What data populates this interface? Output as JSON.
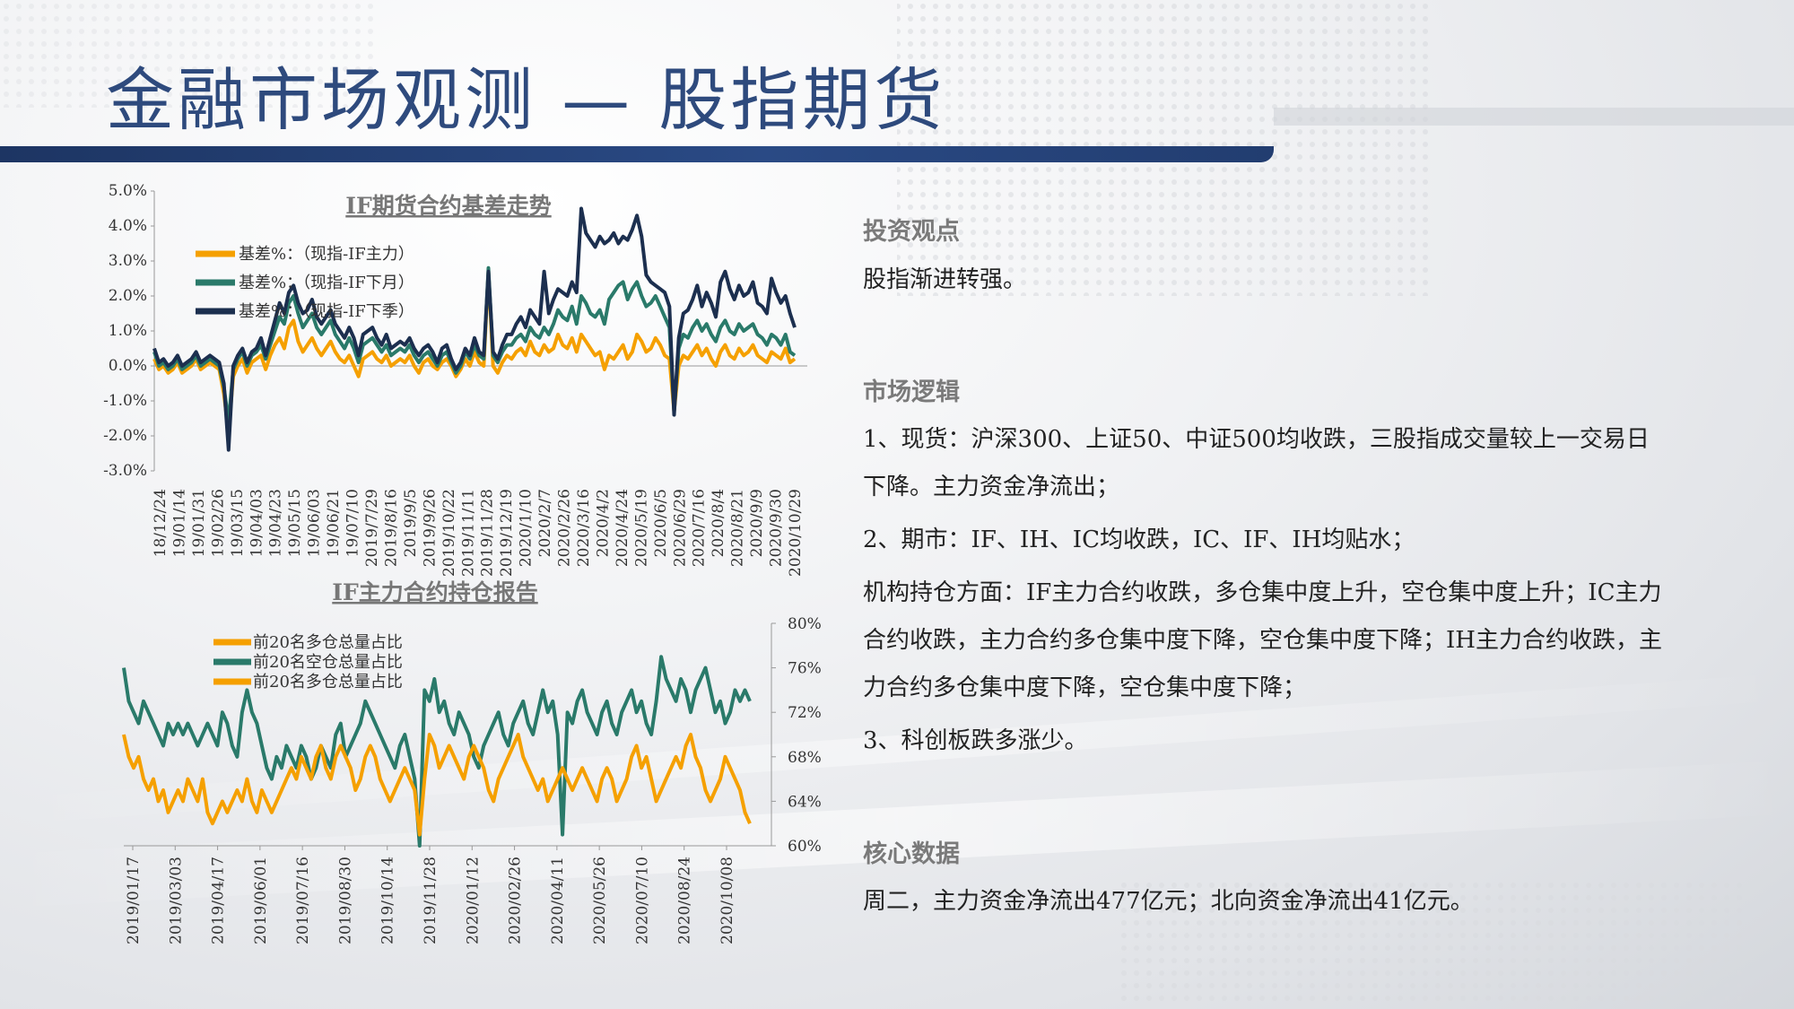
{
  "page": {
    "title": "金融市场观测 — 股指期货"
  },
  "sections": {
    "view_heading": "投资观点",
    "view_text": "股指渐进转强。",
    "logic_heading": "市场逻辑",
    "logic_lines": [
      "1、现货：沪深300、上证50、中证500均收跌，三股指成交量较上一交易日下降。主力资金净流出；",
      "2、期市：IF、IH、IC均收跌，IC、IF、IH均贴水；",
      "机构持仓方面：IF主力合约收跌，多仓集中度上升，空仓集中度上升；IC主力合约收跌，主力合约多仓集中度下降，空仓集中度下降；IH主力合约收跌，主力合约多仓集中度下降，空仓集中度下降；",
      "3、科创板跌多涨少。"
    ],
    "core_heading": "核心数据",
    "core_text": "周二，主力资金净流出477亿元；北向资金净流出41亿元。"
  },
  "colors": {
    "orange": "#f5a000",
    "green": "#2a7a6a",
    "navy": "#1c2f4f",
    "title_blue": "#2e4a7d"
  },
  "chart_data": [
    {
      "type": "line",
      "title": "IF期货合约基差走势",
      "ylim": [
        -3.0,
        5.0
      ],
      "y_ticks": [
        "5.0%",
        "4.0%",
        "3.0%",
        "2.0%",
        "1.0%",
        "0.0%",
        "-1.0%",
        "-2.0%",
        "-3.0%"
      ],
      "x_ticks": [
        "18/12/24",
        "19/01/14",
        "19/01/31",
        "19/02/26",
        "19/03/15",
        "19/04/03",
        "19/04/23",
        "19/05/15",
        "19/06/03",
        "19/06/21",
        "19/07/10",
        "2019/7/29",
        "2019/8/16",
        "2019/9/5",
        "2019/9/26",
        "2019/10/22",
        "2019/11/11",
        "2019/11/28",
        "2019/12/19",
        "2020/1/10",
        "2020/2/7",
        "2020/2/26",
        "2020/3/16",
        "2020/4/2",
        "2020/4/24",
        "2020/5/19",
        "2020/6/5",
        "2020/6/29",
        "2020/7/16",
        "2020/8/4",
        "2020/8/21",
        "2020/9/9",
        "2020/9/30",
        "2020/10/29"
      ],
      "legend": "top-left",
      "series": [
        {
          "name": "基差%：（现指-IF主力）",
          "color": "#f5a000",
          "values": [
            0.2,
            -0.1,
            0.0,
            -0.2,
            -0.1,
            0.1,
            -0.2,
            -0.1,
            0.0,
            0.2,
            -0.1,
            0.0,
            0.1,
            0.0,
            -0.1,
            -0.8,
            -1.9,
            -0.3,
            0.0,
            0.2,
            -0.2,
            0.1,
            0.2,
            0.3,
            -0.1,
            0.3,
            0.6,
            0.8,
            0.5,
            1.1,
            1.3,
            0.7,
            0.4,
            0.6,
            0.8,
            0.5,
            0.3,
            0.5,
            0.7,
            0.4,
            0.2,
            0.1,
            0.3,
            0.0,
            -0.3,
            0.2,
            0.3,
            0.4,
            0.2,
            0.1,
            0.3,
            0.0,
            0.1,
            0.2,
            0.1,
            0.3,
            0.0,
            -0.2,
            0.1,
            0.2,
            0.0,
            -0.1,
            0.1,
            0.2,
            0.0,
            -0.3,
            -0.1,
            0.2,
            0.0,
            0.4,
            0.1,
            0.0,
            2.7,
            0.0,
            -0.2,
            0.1,
            0.3,
            0.2,
            0.4,
            0.5,
            0.3,
            0.7,
            0.4,
            0.3,
            0.6,
            0.4,
            0.5,
            0.9,
            0.6,
            0.5,
            0.8,
            0.4,
            0.9,
            0.7,
            0.5,
            0.3,
            0.4,
            -0.1,
            0.3,
            0.2,
            0.4,
            0.6,
            0.2,
            0.4,
            0.9,
            0.7,
            0.4,
            0.5,
            0.8,
            0.6,
            0.3,
            0.2,
            -1.3,
            0.0,
            0.3,
            0.2,
            0.4,
            0.6,
            0.3,
            0.5,
            0.2,
            0.0,
            0.4,
            0.6,
            0.3,
            0.2,
            0.5,
            0.3,
            0.4,
            0.6,
            0.3,
            0.2,
            0.1,
            0.4,
            0.3,
            0.2,
            0.5,
            0.1,
            0.2
          ]
        },
        {
          "name": "基差%：（现指-IF下月）",
          "color": "#2a7a6a",
          "values": [
            0.4,
            0.0,
            0.1,
            -0.1,
            0.0,
            0.2,
            -0.1,
            0.0,
            0.1,
            0.3,
            0.0,
            0.1,
            0.2,
            0.1,
            0.0,
            -0.6,
            -1.6,
            -0.1,
            0.2,
            0.4,
            0.0,
            0.3,
            0.4,
            0.6,
            0.2,
            0.6,
            1.0,
            1.4,
            1.2,
            1.8,
            2.0,
            1.5,
            1.1,
            1.3,
            1.5,
            1.1,
            0.9,
            1.1,
            1.3,
            0.9,
            0.7,
            0.5,
            0.8,
            0.5,
            0.1,
            0.6,
            0.7,
            0.8,
            0.6,
            0.4,
            0.6,
            0.3,
            0.4,
            0.5,
            0.4,
            0.6,
            0.3,
            0.1,
            0.3,
            0.4,
            0.2,
            0.0,
            0.3,
            0.4,
            0.1,
            -0.2,
            0.0,
            0.4,
            0.2,
            0.6,
            0.3,
            0.2,
            2.8,
            0.3,
            0.1,
            0.4,
            0.6,
            0.6,
            0.8,
            0.9,
            0.7,
            1.1,
            0.9,
            0.8,
            1.1,
            0.9,
            1.2,
            1.6,
            1.4,
            1.3,
            1.7,
            1.2,
            2.0,
            1.8,
            1.5,
            1.4,
            1.6,
            1.2,
            1.9,
            2.1,
            2.3,
            2.4,
            1.9,
            2.2,
            2.4,
            2.0,
            1.7,
            1.8,
            2.0,
            1.7,
            1.4,
            1.1,
            -1.3,
            0.5,
            0.9,
            0.8,
            1.1,
            1.3,
            1.0,
            1.2,
            0.9,
            0.7,
            1.1,
            1.3,
            1.0,
            0.9,
            1.2,
            1.0,
            1.1,
            1.2,
            0.9,
            0.8,
            0.6,
            0.9,
            0.8,
            0.6,
            0.9,
            0.4,
            0.3
          ]
        },
        {
          "name": "基差%：（现指-IF下季）",
          "color": "#1c2f4f",
          "values": [
            0.5,
            0.1,
            0.2,
            0.0,
            0.1,
            0.3,
            0.0,
            0.1,
            0.2,
            0.4,
            0.1,
            0.2,
            0.3,
            0.2,
            0.1,
            -0.5,
            -2.4,
            0.0,
            0.3,
            0.5,
            0.1,
            0.4,
            0.5,
            0.8,
            0.3,
            0.8,
            1.3,
            1.8,
            1.5,
            2.1,
            2.3,
            1.8,
            1.5,
            1.6,
            1.9,
            1.4,
            1.2,
            1.4,
            1.6,
            1.2,
            1.0,
            0.8,
            1.1,
            0.8,
            0.3,
            0.9,
            1.0,
            1.1,
            0.8,
            0.6,
            0.9,
            0.5,
            0.6,
            0.7,
            0.6,
            0.8,
            0.5,
            0.3,
            0.5,
            0.6,
            0.4,
            0.1,
            0.5,
            0.6,
            0.2,
            -0.1,
            0.1,
            0.5,
            0.3,
            0.8,
            0.4,
            0.3,
            2.7,
            0.4,
            0.2,
            0.6,
            0.9,
            0.9,
            1.2,
            1.4,
            1.1,
            1.6,
            1.4,
            1.2,
            2.7,
            1.5,
            1.9,
            2.2,
            2.1,
            2.0,
            2.4,
            2.1,
            4.5,
            3.8,
            3.6,
            3.4,
            3.7,
            3.5,
            3.6,
            3.8,
            3.5,
            3.7,
            3.6,
            3.9,
            4.3,
            3.7,
            2.6,
            2.4,
            2.3,
            2.2,
            2.1,
            1.7,
            -1.4,
            0.8,
            1.5,
            1.6,
            1.9,
            2.3,
            1.7,
            2.1,
            1.8,
            1.4,
            2.4,
            2.7,
            2.2,
            1.9,
            2.3,
            2.0,
            2.1,
            2.4,
            1.8,
            1.7,
            1.5,
            2.5,
            2.1,
            1.8,
            2.0,
            1.5,
            1.1
          ]
        }
      ]
    },
    {
      "type": "line",
      "title": "IF主力合约持仓报告",
      "ylim": [
        60,
        80
      ],
      "y_ticks": [
        "80%",
        "76%",
        "72%",
        "68%",
        "64%",
        "60%"
      ],
      "x_ticks": [
        "2019/01/17",
        "2019/03/03",
        "2019/04/17",
        "2019/06/01",
        "2019/07/16",
        "2019/08/30",
        "2019/10/14",
        "2019/11/28",
        "2020/01/12",
        "2020/02/26",
        "2020/04/11",
        "2020/05/26",
        "2020/07/10",
        "2020/08/24",
        "2020/10/08"
      ],
      "legend": "top-left",
      "series": [
        {
          "name": "前20名多仓总量占比",
          "color": "#f5a000",
          "values": [
            70,
            68,
            67,
            68,
            66,
            65,
            66,
            64,
            65,
            63,
            64,
            65,
            64,
            66,
            65,
            64,
            66,
            63,
            62,
            63,
            64,
            63,
            64,
            65,
            64,
            66,
            64,
            63,
            65,
            64,
            63,
            64,
            65,
            66,
            67,
            66,
            68,
            67,
            66,
            68,
            69,
            67,
            66,
            68,
            69,
            68,
            67,
            65,
            66,
            68,
            69,
            68,
            66,
            65,
            64,
            65,
            66,
            67,
            66,
            65,
            61,
            66,
            70,
            69,
            67,
            68,
            69,
            68,
            67,
            66,
            68,
            69,
            68,
            67,
            65,
            64,
            66,
            67,
            68,
            69,
            70,
            68,
            67,
            66,
            65,
            66,
            64,
            65,
            66,
            67,
            66,
            65,
            66,
            67,
            66,
            65,
            64,
            66,
            67,
            66,
            64,
            65,
            66,
            68,
            69,
            67,
            68,
            66,
            64,
            65,
            66,
            67,
            68,
            67,
            69,
            70,
            68,
            67,
            65,
            64,
            65,
            66,
            68,
            67,
            66,
            65,
            63,
            62
          ]
        },
        {
          "name": "前20名空仓总量占比",
          "color": "#2a7a6a",
          "values": [
            76,
            73,
            72,
            71,
            73,
            72,
            71,
            70,
            69,
            71,
            70,
            71,
            70,
            71,
            70,
            69,
            70,
            71,
            70,
            69,
            72,
            71,
            69,
            68,
            72,
            74,
            72,
            71,
            69,
            67,
            66,
            68,
            67,
            69,
            68,
            67,
            69,
            68,
            66,
            67,
            69,
            68,
            67,
            70,
            71,
            68,
            69,
            70,
            71,
            73,
            72,
            71,
            70,
            69,
            68,
            67,
            69,
            70,
            68,
            66,
            60,
            74,
            73,
            75,
            72,
            73,
            71,
            70,
            72,
            71,
            70,
            68,
            67,
            69,
            70,
            71,
            72,
            70,
            69,
            71,
            72,
            73,
            71,
            70,
            72,
            74,
            72,
            73,
            70,
            61,
            72,
            71,
            73,
            74,
            72,
            71,
            70,
            72,
            73,
            71,
            70,
            72,
            73,
            74,
            72,
            73,
            71,
            70,
            73,
            77,
            75,
            74,
            73,
            75,
            74,
            72,
            74,
            75,
            76,
            74,
            72,
            73,
            71,
            72,
            74,
            73,
            74,
            73
          ]
        },
        {
          "name": "前20名多仓总量占比",
          "color": "#f5a000",
          "values": []
        }
      ]
    }
  ]
}
